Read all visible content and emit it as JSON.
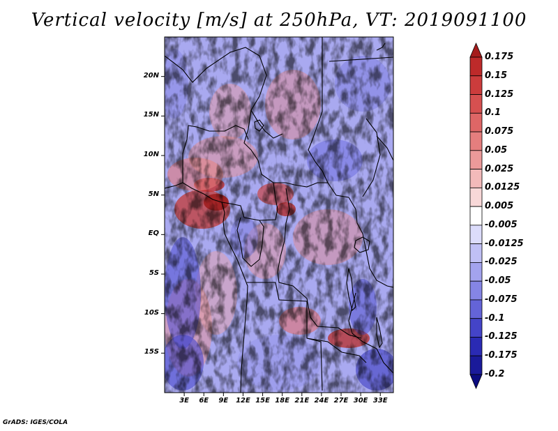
{
  "title": "Vertical velocity [m/s] at 250hPa, VT: 2019091100",
  "credit": "GrADS: IGES/COLA",
  "map": {
    "lat_range": [
      -20,
      25
    ],
    "lon_range": [
      0,
      35
    ],
    "lat_ticks": [
      {
        "value": 20,
        "label": "20N"
      },
      {
        "value": 15,
        "label": "15N"
      },
      {
        "value": 10,
        "label": "10N"
      },
      {
        "value": 5,
        "label": "5N"
      },
      {
        "value": 0,
        "label": "EQ"
      },
      {
        "value": -5,
        "label": "5S"
      },
      {
        "value": -10,
        "label": "10S"
      },
      {
        "value": -15,
        "label": "15S"
      }
    ],
    "lon_ticks": [
      {
        "value": 3,
        "label": "3E"
      },
      {
        "value": 6,
        "label": "6E"
      },
      {
        "value": 9,
        "label": "9E"
      },
      {
        "value": 12,
        "label": "12E"
      },
      {
        "value": 15,
        "label": "15E"
      },
      {
        "value": 18,
        "label": "18E"
      },
      {
        "value": 21,
        "label": "21E"
      },
      {
        "value": 24,
        "label": "24E"
      },
      {
        "value": 27,
        "label": "27E"
      },
      {
        "value": 30,
        "label": "30E"
      },
      {
        "value": 33,
        "label": "33E"
      }
    ]
  },
  "colorbar": {
    "labels": [
      "0.175",
      "0.15",
      "0.125",
      "0.1",
      "0.075",
      "0.05",
      "0.025",
      "0.0125",
      "0.005",
      "-0.005",
      "-0.0125",
      "-0.025",
      "-0.05",
      "-0.075",
      "-0.1",
      "-0.125",
      "-0.175",
      "-0.2"
    ],
    "colors": [
      "#a51c1c",
      "#bd2a2a",
      "#cc3c3c",
      "#d65050",
      "#de6666",
      "#e57e7e",
      "#ec9a9a",
      "#f3baba",
      "#f8d8d8",
      "#ffffff",
      "#dcdcfb",
      "#c0c0f5",
      "#a3a3ee",
      "#8585e5",
      "#6464d8",
      "#4444c8",
      "#2a2ab4",
      "#1a1a9a",
      "#0c0c80"
    ]
  }
}
